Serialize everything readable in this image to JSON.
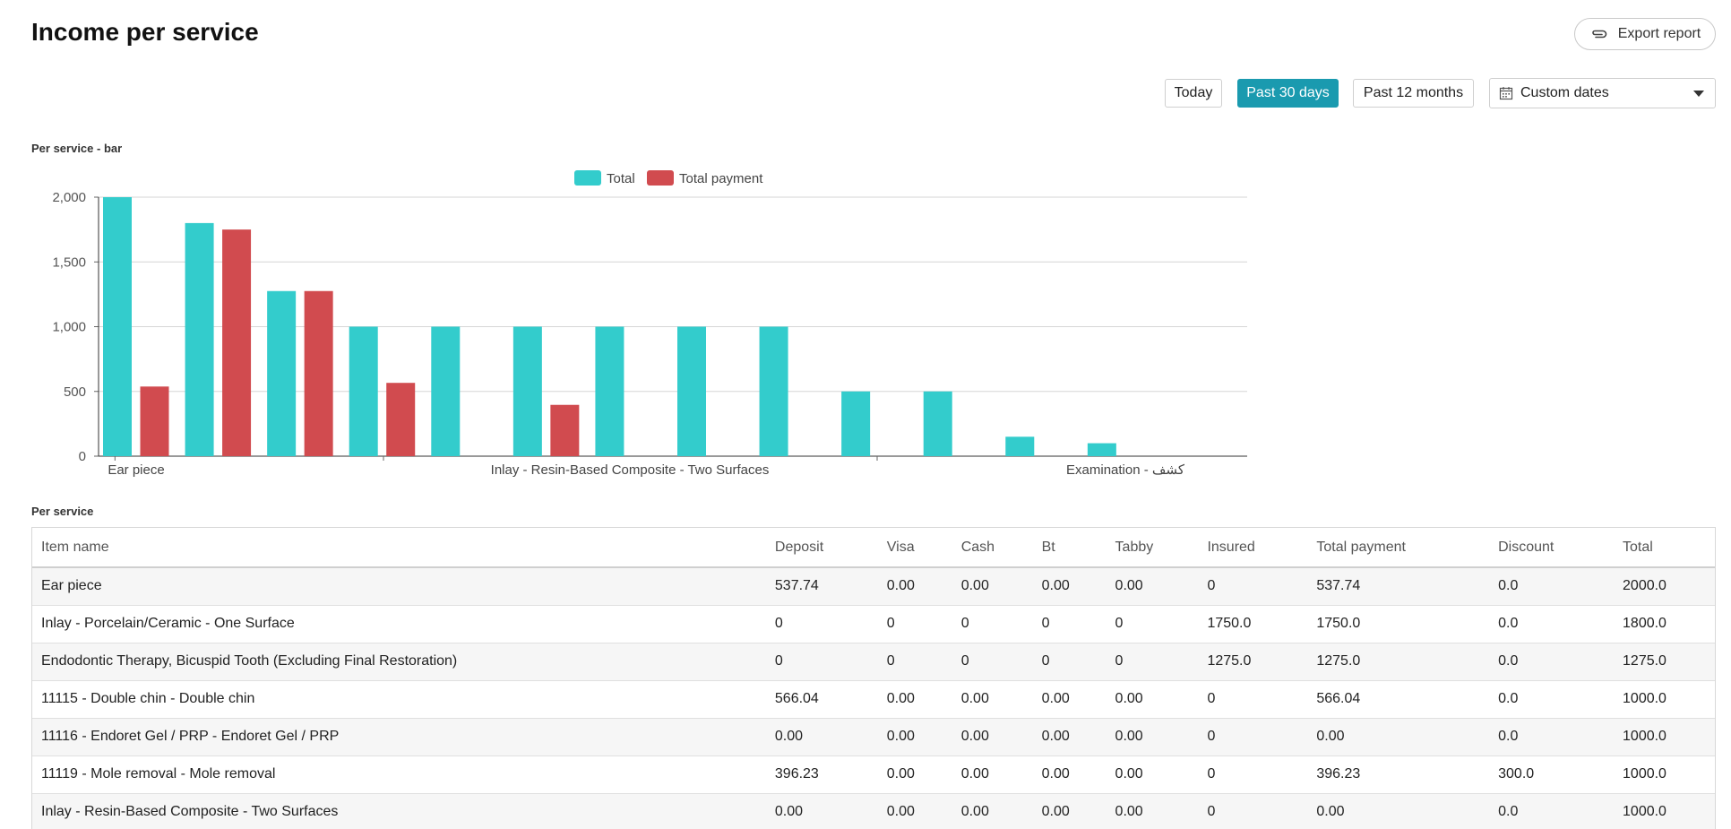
{
  "page": {
    "title": "Income per service"
  },
  "toolbar": {
    "export_label": "Export report",
    "ranges": [
      "Today",
      "Past 30 days",
      "Past 12 months"
    ],
    "active_range": "Past 30 days",
    "custom_select_value": "Custom dates"
  },
  "sections": {
    "bar_title": "Per service - bar",
    "table_title": "Per service"
  },
  "colors": {
    "total": "#33cccc",
    "payment": "#d14b4f",
    "accent": "#1a9aaf"
  },
  "chart_data": {
    "type": "bar",
    "title": "Per service - bar",
    "legend_position": "top-center",
    "ylim": [
      0,
      2000
    ],
    "yticks": [
      "0",
      "500",
      "1,000",
      "1,500",
      "2,000"
    ],
    "ytick_values": [
      0,
      500,
      1000,
      1500,
      2000
    ],
    "grid": true,
    "x_tick_labels": [
      "Ear piece",
      "Inlay - Resin-Based Composite - Two Surfaces",
      "Examination - كشف"
    ],
    "series": [
      {
        "name": "Total",
        "values": [
          2000,
          1800,
          1275,
          1000,
          1000,
          1000,
          1000,
          1000,
          1000,
          500,
          500,
          150,
          100,
          0
        ]
      },
      {
        "name": "Total payment",
        "values": [
          537.74,
          1750,
          1275,
          566.04,
          0,
          396.23,
          0,
          0,
          0,
          0,
          0,
          0,
          0,
          0
        ]
      }
    ]
  },
  "table": {
    "columns": [
      "Item name",
      "Deposit",
      "Visa",
      "Cash",
      "Bt",
      "Tabby",
      "Insured",
      "Total payment",
      "Discount",
      "Total"
    ],
    "rows": [
      [
        "Ear piece",
        "537.74",
        "0.00",
        "0.00",
        "0.00",
        "0.00",
        "0",
        "537.74",
        "0.0",
        "2000.0"
      ],
      [
        "Inlay - Porcelain/Ceramic - One Surface",
        "0",
        "0",
        "0",
        "0",
        "0",
        "1750.0",
        "1750.0",
        "0.0",
        "1800.0"
      ],
      [
        "Endodontic Therapy, Bicuspid Tooth (Excluding Final Restoration)",
        "0",
        "0",
        "0",
        "0",
        "0",
        "1275.0",
        "1275.0",
        "0.0",
        "1275.0"
      ],
      [
        "11115 - Double chin - Double chin",
        "566.04",
        "0.00",
        "0.00",
        "0.00",
        "0.00",
        "0",
        "566.04",
        "0.0",
        "1000.0"
      ],
      [
        "11116 - Endoret Gel / PRP - Endoret Gel / PRP",
        "0.00",
        "0.00",
        "0.00",
        "0.00",
        "0.00",
        "0",
        "0.00",
        "0.0",
        "1000.0"
      ],
      [
        "11119 - Mole removal - Mole removal",
        "396.23",
        "0.00",
        "0.00",
        "0.00",
        "0.00",
        "0",
        "396.23",
        "300.0",
        "1000.0"
      ],
      [
        "Inlay - Resin-Based Composite - Two Surfaces",
        "0.00",
        "0.00",
        "0.00",
        "0.00",
        "0.00",
        "0",
        "0.00",
        "0.0",
        "1000.0"
      ]
    ]
  }
}
